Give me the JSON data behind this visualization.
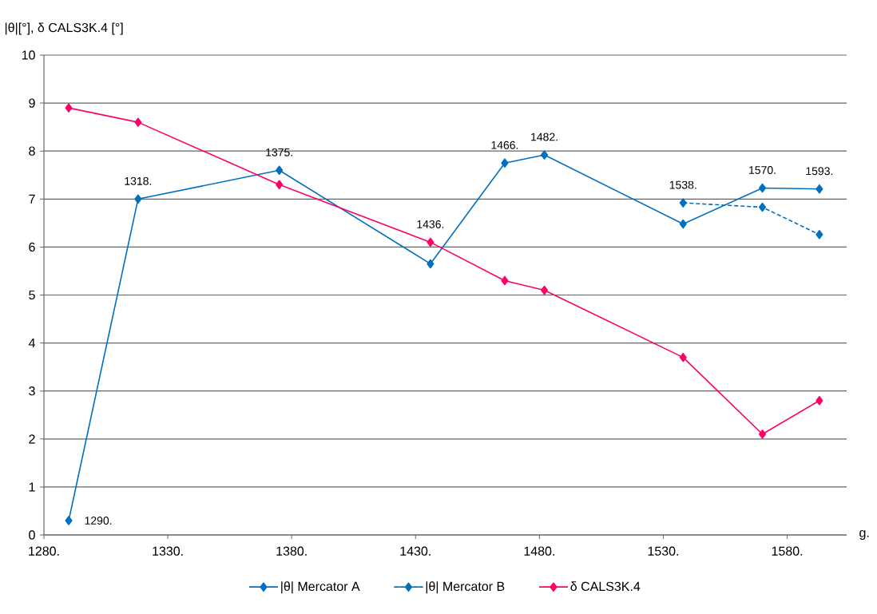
{
  "chart_data": {
    "type": "line",
    "ylabel": "|θ|[°], δ CALS3K.4 [°]",
    "xlabel": "g.",
    "xlim": [
      1280,
      1604
    ],
    "xticks": [
      {
        "value": 1280,
        "label": "1280."
      },
      {
        "value": 1330,
        "label": "1330."
      },
      {
        "value": 1380,
        "label": "1380."
      },
      {
        "value": 1430,
        "label": "1430."
      },
      {
        "value": 1480,
        "label": "1480."
      },
      {
        "value": 1530,
        "label": "1530."
      },
      {
        "value": 1580,
        "label": "1580."
      }
    ],
    "ylim": [
      0,
      10
    ],
    "yticks": [
      0,
      1,
      2,
      3,
      4,
      5,
      6,
      7,
      8,
      9,
      10
    ],
    "grid": "y",
    "legend": "bottom",
    "marker": "diamond",
    "series": [
      {
        "name": "|θ| Mercator A",
        "color": "#0070c0",
        "line_style": "solid",
        "x": [
          1290,
          1318,
          1375,
          1436,
          1466,
          1482,
          1538,
          1570,
          1593
        ],
        "values": [
          0.3,
          7.0,
          7.6,
          5.65,
          7.75,
          7.92,
          6.48,
          7.23,
          7.21
        ]
      },
      {
        "name": "|θ| Mercator B",
        "color": "#0070c0",
        "line_style": "dashed",
        "x": [
          1538,
          1570,
          1593
        ],
        "values": [
          6.92,
          6.83,
          6.26
        ]
      },
      {
        "name": "δ CALS3K.4",
        "color": "#ff0066",
        "line_style": "solid",
        "x": [
          1290,
          1318,
          1375,
          1436,
          1466,
          1482,
          1538,
          1570,
          1593
        ],
        "values": [
          8.9,
          8.6,
          7.3,
          6.1,
          5.3,
          5.1,
          3.7,
          2.1,
          2.8
        ]
      }
    ],
    "annotations": [
      {
        "text": "1290.",
        "x": 1290,
        "y": 0.3
      },
      {
        "text": "1318.",
        "x": 1318,
        "y": 7.0
      },
      {
        "text": "1375.",
        "x": 1375,
        "y": 7.6
      },
      {
        "text": "1436.",
        "x": 1436,
        "y": 6.1
      },
      {
        "text": "1466.",
        "x": 1466,
        "y": 7.75
      },
      {
        "text": "1482.",
        "x": 1482,
        "y": 7.92
      },
      {
        "text": "1538.",
        "x": 1538,
        "y": 6.92
      },
      {
        "text": "1570.",
        "x": 1570,
        "y": 7.23
      },
      {
        "text": "1593.",
        "x": 1593,
        "y": 7.21
      }
    ]
  }
}
